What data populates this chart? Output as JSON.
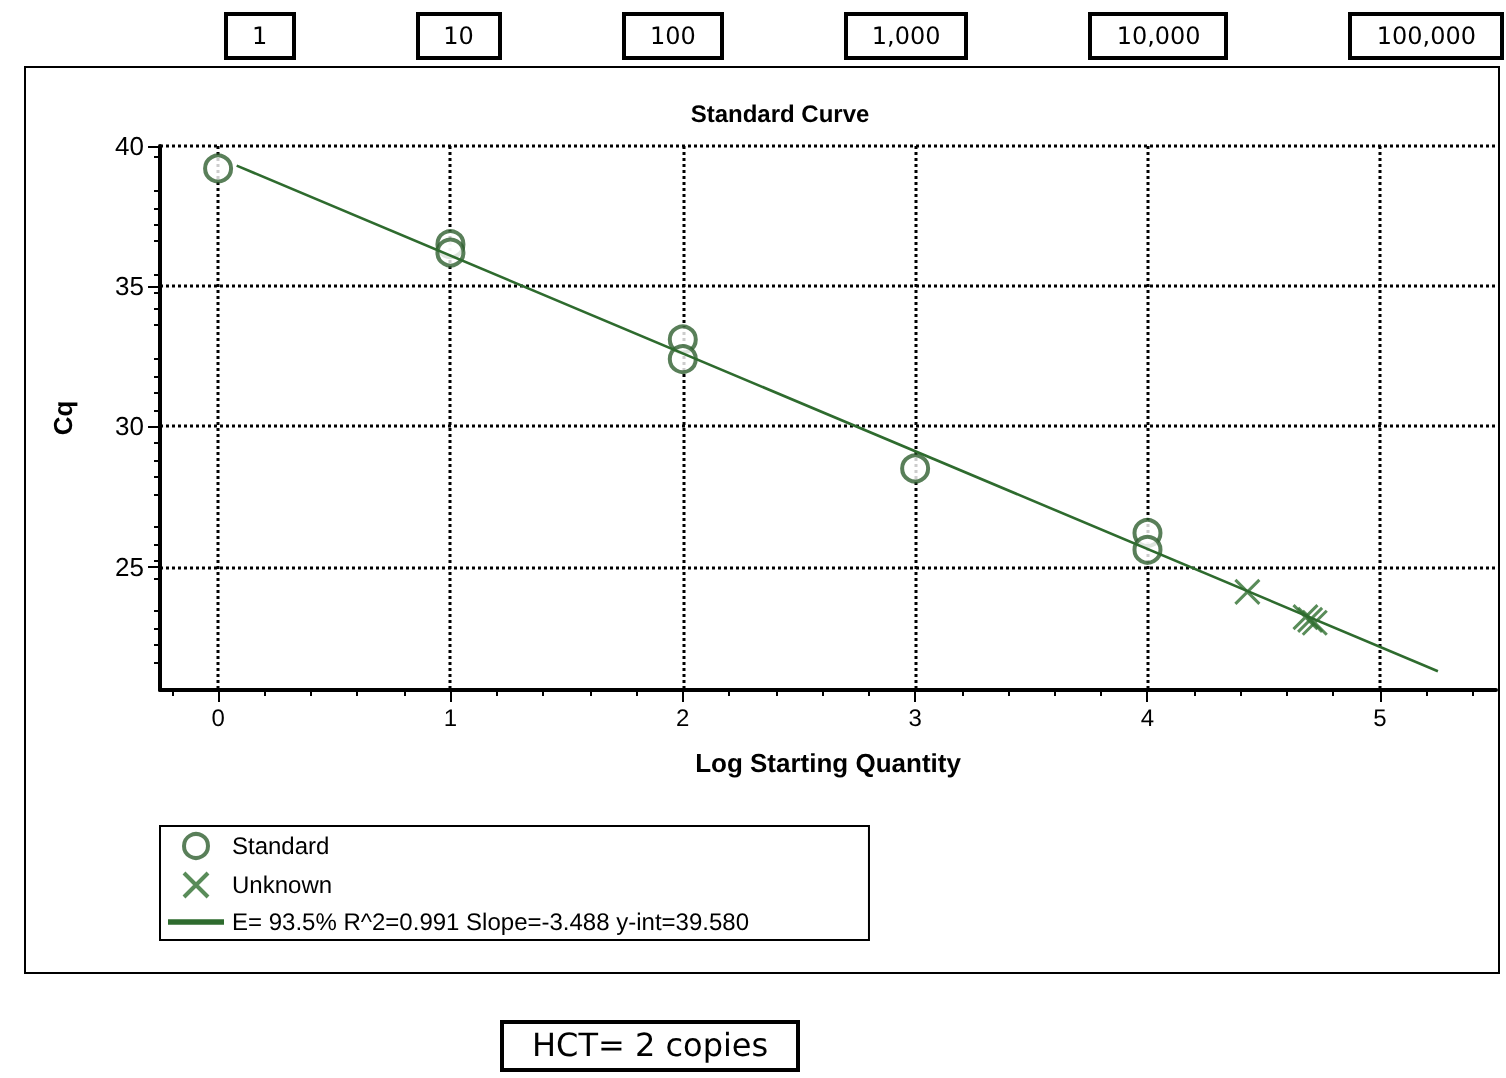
{
  "chart_data": {
    "type": "scatter",
    "title": "Standard Curve",
    "xlabel": "Log Starting Quantity",
    "ylabel": "Cq",
    "annotations": [
      "1",
      "10",
      "100",
      "1,000",
      "10,000",
      "100,000",
      "HCT= 2 copies"
    ],
    "xlim": [
      -0.25,
      5.5
    ],
    "xticks": [
      0,
      1,
      2,
      3,
      4,
      5
    ],
    "ylim": [
      20.6,
      40
    ],
    "yticks": [
      25,
      30,
      35,
      40
    ],
    "grid": true,
    "legend": "bottom left",
    "series": [
      {
        "name": "Standard",
        "marker": "circle",
        "color": "#2f5f2f",
        "x": [
          0,
          1,
          1,
          2,
          2,
          3,
          4,
          4
        ],
        "values": [
          39.2,
          36.5,
          36.2,
          33.1,
          32.4,
          28.5,
          26.2,
          25.6
        ]
      },
      {
        "name": "Unknown",
        "marker": "cross",
        "color": "#2f6f2f",
        "x": [
          4.43,
          4.68,
          4.7,
          4.72
        ],
        "values": [
          24.1,
          23.2,
          23.1,
          23.0
        ]
      },
      {
        "name": "E= 93.5% R^2=0.991 Slope=-3.488 y-int=39.580",
        "type": "line",
        "marker": "none",
        "line_style": "solid",
        "color": "#2e6b2e",
        "x": [
          0.08,
          5.25
        ],
        "values": [
          39.3,
          21.27
        ]
      }
    ]
  }
}
